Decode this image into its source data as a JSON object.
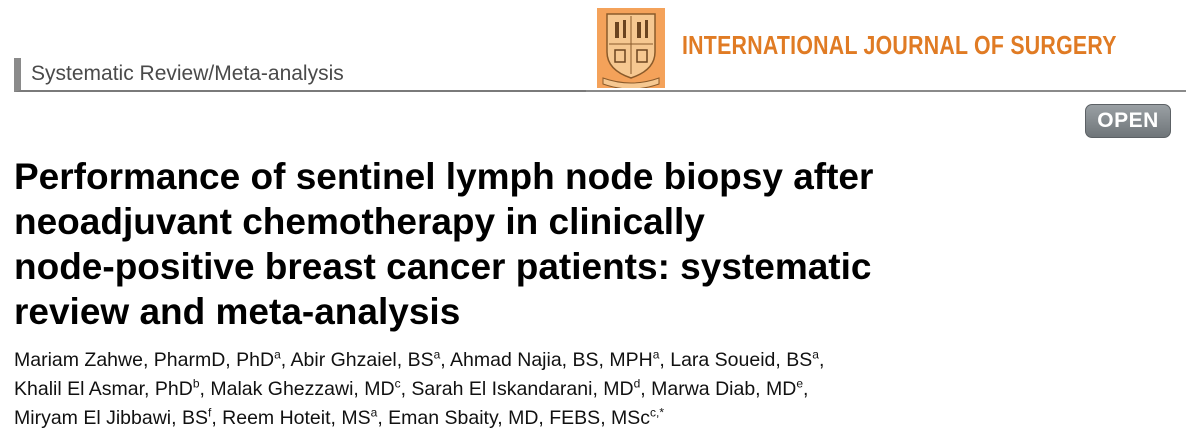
{
  "header": {
    "section_label": "Systematic Review/Meta-analysis",
    "journal_name": "INTERNATIONAL JOURNAL OF SURGERY",
    "open_badge": "OPEN",
    "colors": {
      "journal": "#e07b24",
      "logo_bg": "#f4a25a",
      "logo_panel": "#f6c891",
      "section_bar": "#8a8a8a"
    }
  },
  "article": {
    "title_lines": [
      "Performance of sentinel lymph node biopsy after",
      "neoadjuvant chemotherapy in clinically",
      "node-positive breast cancer patients: systematic",
      "review and meta-analysis"
    ],
    "author_lines": [
      [
        {
          "name": "Mariam Zahwe, PharmD, PhD",
          "aff": "a",
          "sep": ", "
        },
        {
          "name": "Abir Ghzaiel, BS",
          "aff": "a",
          "sep": ", "
        },
        {
          "name": "Ahmad Najia, BS, MPH",
          "aff": "a",
          "sep": ", "
        },
        {
          "name": "Lara Soueid, BS",
          "aff": "a",
          "sep": ","
        }
      ],
      [
        {
          "name": "Khalil El Asmar, PhD",
          "aff": "b",
          "sep": ", "
        },
        {
          "name": "Malak Ghezzawi, MD",
          "aff": "c",
          "sep": ", "
        },
        {
          "name": "Sarah El Iskandarani, MD",
          "aff": "d",
          "sep": ", "
        },
        {
          "name": "Marwa Diab, MD",
          "aff": "e",
          "sep": ","
        }
      ],
      [
        {
          "name": "Miryam El Jibbawi, BS",
          "aff": "f",
          "sep": ", "
        },
        {
          "name": "Reem Hoteit, MS",
          "aff": "a",
          "sep": ", "
        },
        {
          "name": "Eman Sbaity, MD, FEBS, MSc",
          "aff": "c,*",
          "sep": ""
        }
      ]
    ]
  }
}
